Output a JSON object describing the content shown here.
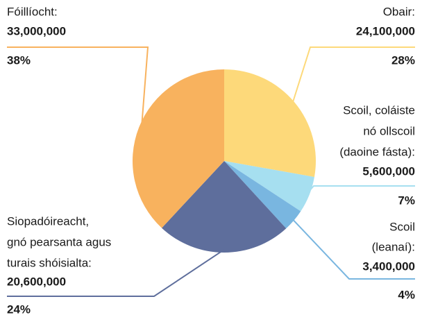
{
  "chart_data": {
    "type": "pie",
    "categories": [
      [
        "Obair:"
      ],
      [
        "Scoil, coláiste",
        "nó ollscoil",
        "(daoine fásta):"
      ],
      [
        "Scoil",
        "(leanaí):"
      ],
      [
        "Siopadóireacht,",
        "gnó pearsanta agus",
        "turais shóisialta:"
      ],
      [
        "Fóillíocht:"
      ]
    ],
    "values": [
      24100000,
      5600000,
      3400000,
      20600000,
      33000000
    ],
    "value_labels": [
      "24,100,000",
      "5,600,000",
      "3,400,000",
      "20,600,000",
      "33,000,000"
    ],
    "percentages": [
      28,
      7,
      4,
      24,
      38
    ],
    "percentage_labels": [
      "28%",
      "7%",
      "4%",
      "24%",
      "38%"
    ],
    "colors": [
      "#fdd97a",
      "#a6dff0",
      "#79b6e0",
      "#5e6e9c",
      "#f8b25e"
    ]
  }
}
